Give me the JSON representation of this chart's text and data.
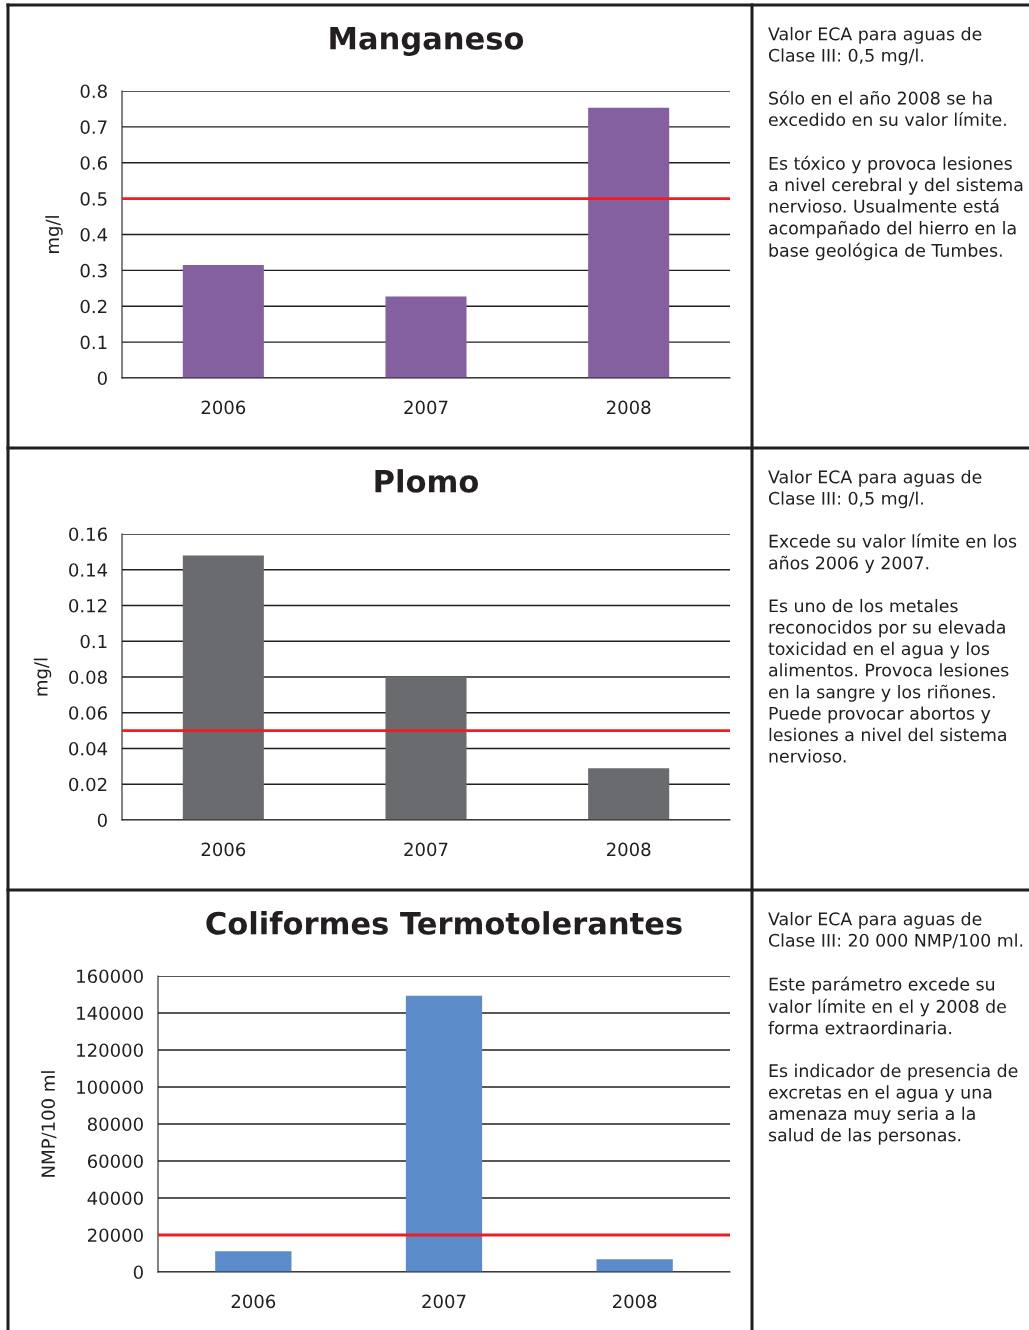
{
  "chart_data": [
    {
      "type": "bar",
      "title": "Manganeso",
      "ylabel": "mg/l",
      "categories": [
        "2006",
        "2007",
        "2008"
      ],
      "values": [
        0.315,
        0.227,
        0.753
      ],
      "color": "#8560a0",
      "ylim": [
        0,
        0.8
      ],
      "yticks": [
        0,
        0.1,
        0.2,
        0.3,
        0.4,
        0.5,
        0.6,
        0.7,
        0.8
      ],
      "grid": "y",
      "ref_lines": [
        {
          "axis": "y",
          "value": 0.5,
          "color": "#ee1c25"
        }
      ]
    },
    {
      "type": "other",
      "annotations": [
        "Valor ECA para aguas de Clase III: 0,5 mg/l.",
        "Sólo en el año 2008 se ha excedido en su valor límite.",
        "Es tóxico y provoca lesiones a nivel cerebral y del sistema nervioso. Usualmente está acompañado del hierro en la base geológica de Tumbes."
      ]
    },
    {
      "type": "bar",
      "title": "Plomo",
      "ylabel": "mg/l",
      "categories": [
        "2006",
        "2007",
        "2008"
      ],
      "values": [
        0.148,
        0.08,
        0.029
      ],
      "color": "#6a6b6e",
      "ylim": [
        0,
        0.16
      ],
      "yticks": [
        0,
        0.02,
        0.04,
        0.06,
        0.08,
        0.1,
        0.12,
        0.14,
        0.16
      ],
      "grid": "y",
      "ref_lines": [
        {
          "axis": "y",
          "value": 0.05,
          "color": "#ee1c25"
        }
      ]
    },
    {
      "type": "other",
      "annotations": [
        "Valor ECA para aguas de Clase III: 0,5 mg/l.",
        "Excede su valor límite en los años 2006 y 2007.",
        "Es uno de los metales reconocidos por su elevada toxicidad en el agua y los alimentos. Provoca lesiones en la sangre y los riñones. Puede provocar abortos y lesiones a nivel del sistema nervioso."
      ]
    },
    {
      "type": "bar",
      "title": "Coliformes Termotolerantes",
      "ylabel": "NMP/100 ml",
      "categories": [
        "2006",
        "2007",
        "2008"
      ],
      "values": [
        11200,
        149300,
        6900
      ],
      "color": "#5b8bc9",
      "ylim": [
        0,
        160000
      ],
      "yticks": [
        0,
        20000,
        40000,
        60000,
        80000,
        100000,
        120000,
        140000,
        160000
      ],
      "grid": "y",
      "ref_lines": [
        {
          "axis": "y",
          "value": 20000,
          "color": "#ee1c25"
        }
      ]
    },
    {
      "type": "other",
      "annotations": [
        "Valor ECA para aguas de Clase III: 20 000 NMP/100 ml.",
        "Este parámetro excede su valor límite en el y 2008 de forma extraordinaria.",
        "Es indicador de presencia de excretas en el agua y una amenaza muy seria a la salud de las personas."
      ]
    }
  ]
}
